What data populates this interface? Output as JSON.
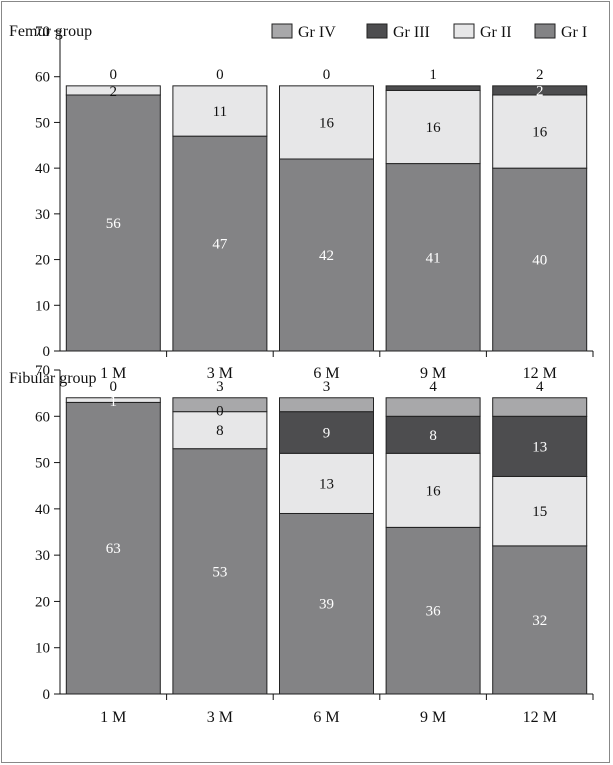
{
  "legend": {
    "entries": [
      {
        "label": "Gr IV",
        "color": "#a8a8aa"
      },
      {
        "label": "Gr III",
        "color": "#4d4d4f"
      },
      {
        "label": "Gr II",
        "color": "#e7e7e8"
      },
      {
        "label": "Gr I",
        "color": "#838385"
      }
    ]
  },
  "chart_data": [
    {
      "type": "bar",
      "stacked": true,
      "title": "Femur group",
      "categories": [
        "1 M",
        "3 M",
        "6 M",
        "9 M",
        "12 M"
      ],
      "ylim": [
        0,
        70
      ],
      "yticks": [
        0,
        10,
        20,
        30,
        40,
        50,
        60,
        70
      ],
      "grid": false,
      "legend_position": "top-right",
      "series": [
        {
          "name": "Gr I",
          "color": "#838385",
          "values": [
            56,
            47,
            42,
            41,
            40
          ]
        },
        {
          "name": "Gr II",
          "color": "#e7e7e8",
          "values": [
            2,
            11,
            16,
            16,
            16
          ]
        },
        {
          "name": "Gr III",
          "color": "#4d4d4f",
          "values": [
            0,
            0,
            0,
            1,
            2
          ]
        },
        {
          "name": "Gr IV",
          "color": "#a8a8aa",
          "values": [
            0,
            0,
            0,
            0,
            0
          ]
        }
      ],
      "annotations": [
        "0",
        "0",
        "0",
        "1",
        "2"
      ]
    },
    {
      "type": "bar",
      "stacked": true,
      "title": "Fibular group",
      "categories": [
        "1 M",
        "3 M",
        "6 M",
        "9 M",
        "12 M"
      ],
      "ylim": [
        0,
        70
      ],
      "yticks": [
        0,
        10,
        20,
        30,
        40,
        50,
        60,
        70
      ],
      "grid": false,
      "series": [
        {
          "name": "Gr I",
          "color": "#838385",
          "values": [
            63,
            53,
            39,
            36,
            32
          ]
        },
        {
          "name": "Gr II",
          "color": "#e7e7e8",
          "values": [
            1,
            8,
            13,
            16,
            15
          ]
        },
        {
          "name": "Gr III",
          "color": "#4d4d4f",
          "values": [
            0,
            0,
            9,
            8,
            13
          ]
        },
        {
          "name": "Gr IV",
          "color": "#a8a8aa",
          "values": [
            0,
            3,
            3,
            4,
            4
          ]
        }
      ],
      "annotations": [
        "0",
        "3",
        "3",
        "4",
        "4"
      ]
    }
  ]
}
